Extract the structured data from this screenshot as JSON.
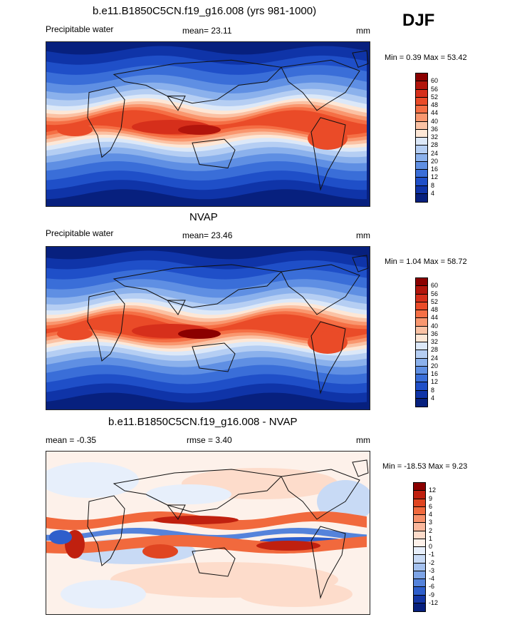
{
  "season": "DJF",
  "panels": [
    {
      "title": "b.e11.B1850C5CN.f19_g16.008 (yrs 981-1000)",
      "left_label": "Precipitable water",
      "center_label": "mean=  23.11",
      "units": "mm",
      "minmax": "Min =   0.39 Max =  53.42",
      "kind": "abs",
      "colorbar_labels": [
        "60",
        "56",
        "52",
        "48",
        "44",
        "40",
        "36",
        "32",
        "28",
        "24",
        "20",
        "16",
        "12",
        "8",
        "4"
      ]
    },
    {
      "title": "NVAP",
      "left_label": "Precipitable water",
      "center_label": "mean=  23.46",
      "units": "mm",
      "minmax": "Min =   1.04 Max =  58.72",
      "kind": "abs2",
      "colorbar_labels": [
        "60",
        "56",
        "52",
        "48",
        "44",
        "40",
        "36",
        "32",
        "28",
        "24",
        "20",
        "16",
        "12",
        "8",
        "4"
      ]
    },
    {
      "title": "b.e11.B1850C5CN.f19_g16.008 - NVAP",
      "left_label": "mean =  -0.35",
      "center_label": "rmse =   3.40",
      "units": "mm",
      "minmax": "Min = -18.53 Max =   9.23",
      "kind": "diff",
      "colorbar_labels": [
        "12",
        "9",
        "6",
        "4",
        "3",
        "2",
        "1",
        "0",
        "-1",
        "-2",
        "-3",
        "-4",
        "-6",
        "-9",
        "-12"
      ]
    }
  ],
  "colors": {
    "abs_scale": [
      "#8b0000",
      "#b2150c",
      "#d62f1b",
      "#ea4b28",
      "#f56f45",
      "#f9976f",
      "#fbc2a4",
      "#fde7d6",
      "#dce8f8",
      "#b5cef3",
      "#8bb1ec",
      "#5f8fe3",
      "#3a6ed8",
      "#1f4fc8",
      "#0f34a8",
      "#07207e"
    ],
    "diff_scale": [
      "#8b0000",
      "#c0200f",
      "#e04521",
      "#f1693d",
      "#f7906a",
      "#fab79c",
      "#fddccb",
      "#fdf1ea",
      "#e7effb",
      "#c8daf5",
      "#a4c1ef",
      "#7da4e6",
      "#5583db",
      "#2e5ecb",
      "#1436a5",
      "#07207e"
    ]
  }
}
